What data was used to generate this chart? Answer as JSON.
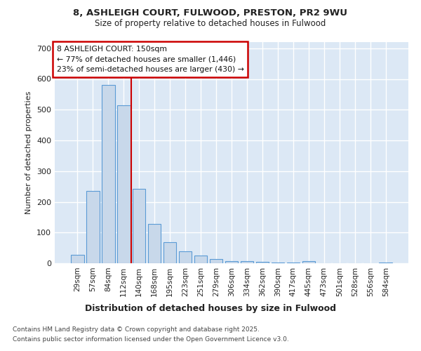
{
  "title_line1": "8, ASHLEIGH COURT, FULWOOD, PRESTON, PR2 9WU",
  "title_line2": "Size of property relative to detached houses in Fulwood",
  "xlabel": "Distribution of detached houses by size in Fulwood",
  "ylabel": "Number of detached properties",
  "categories": [
    "29sqm",
    "57sqm",
    "84sqm",
    "112sqm",
    "140sqm",
    "168sqm",
    "195sqm",
    "223sqm",
    "251sqm",
    "279sqm",
    "306sqm",
    "334sqm",
    "362sqm",
    "390sqm",
    "417sqm",
    "445sqm",
    "473sqm",
    "501sqm",
    "528sqm",
    "556sqm",
    "584sqm"
  ],
  "values": [
    28,
    235,
    580,
    515,
    243,
    128,
    68,
    40,
    25,
    13,
    8,
    8,
    5,
    3,
    2,
    8,
    1,
    1,
    0,
    0,
    2
  ],
  "bar_color": "#c8d8ea",
  "bar_edge_color": "#5b9bd5",
  "plot_bg_color": "#dce8f5",
  "fig_bg_color": "#ffffff",
  "grid_color": "#ffffff",
  "red_line_x": 3.5,
  "red_line_color": "#cc0000",
  "annotation_title": "8 ASHLEIGH COURT: 150sqm",
  "annotation_line2": "← 77% of detached houses are smaller (1,446)",
  "annotation_line3": "23% of semi-detached houses are larger (430) →",
  "annotation_box_edge_color": "#cc0000",
  "ylim": [
    0,
    720
  ],
  "yticks": [
    0,
    100,
    200,
    300,
    400,
    500,
    600,
    700
  ],
  "footnote1": "Contains HM Land Registry data © Crown copyright and database right 2025.",
  "footnote2": "Contains public sector information licensed under the Open Government Licence v3.0."
}
